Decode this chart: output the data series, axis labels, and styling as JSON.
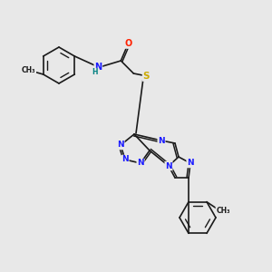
{
  "bg_color": "#e8e8e8",
  "atom_colors": {
    "N": "#1a1aff",
    "O": "#ff2000",
    "S": "#ccaa00",
    "C": "#1a1a1a",
    "H": "#008080"
  },
  "bond_color": "#1a1a1a",
  "lw": 1.2,
  "lw_inner": 1.0
}
